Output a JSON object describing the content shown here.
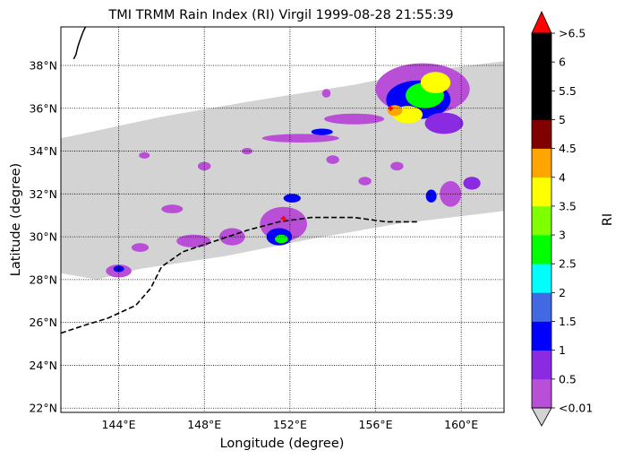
{
  "chart_data": {
    "type": "heatmap",
    "title": "TMI TRMM Rain Index (RI) Virgil 1999-08-28 21:55:39",
    "xlabel": "Longitude (degree)",
    "ylabel": "Latitude (degree)",
    "xlim": [
      141.3,
      162.0
    ],
    "ylim": [
      21.8,
      39.8
    ],
    "x_ticks": [
      {
        "value": 144,
        "label": "144°E"
      },
      {
        "value": 148,
        "label": "148°E"
      },
      {
        "value": 152,
        "label": "152°E"
      },
      {
        "value": 156,
        "label": "156°E"
      },
      {
        "value": 160,
        "label": "160°E"
      }
    ],
    "y_ticks": [
      {
        "value": 22,
        "label": "22°N"
      },
      {
        "value": 24,
        "label": "24°N"
      },
      {
        "value": 26,
        "label": "26°N"
      },
      {
        "value": 28,
        "label": "28°N"
      },
      {
        "value": 30,
        "label": "30°N"
      },
      {
        "value": 32,
        "label": "32°N"
      },
      {
        "value": 34,
        "label": "34°N"
      },
      {
        "value": 36,
        "label": "36°N"
      },
      {
        "value": 38,
        "label": "38°N"
      }
    ],
    "grid": true,
    "colorbar": {
      "label": "RI",
      "bounds": [
        0,
        0.5,
        1,
        1.5,
        2,
        2.5,
        3,
        3.5,
        4,
        4.5,
        5,
        5.5,
        6,
        6.5
      ],
      "tick_labels": [
        "<0.01",
        "0.5",
        "1",
        "1.5",
        "2",
        "2.5",
        "3",
        "3.5",
        "4",
        "4.5",
        "5",
        "5.5",
        "6",
        ">6.5"
      ],
      "colors": [
        "#b84fd6",
        "#8a2be2",
        "#0000ff",
        "#4169e1",
        "#00ffff",
        "#00ff00",
        "#7fff00",
        "#ffff00",
        "#ffa500",
        "#800000",
        "#000000",
        "#000000",
        "#000000"
      ],
      "under_color": "#d3d3d3",
      "over_color": "#ff0000"
    },
    "swath": {
      "color": "#d3d3d3",
      "polygon": [
        [
          141.3,
          34.6
        ],
        [
          146,
          35.6
        ],
        [
          150,
          36.3
        ],
        [
          155,
          37.1
        ],
        [
          158,
          37.7
        ],
        [
          162,
          38.2
        ],
        [
          162,
          31.2
        ],
        [
          157,
          30.6
        ],
        [
          153,
          29.9
        ],
        [
          149,
          29.1
        ],
        [
          145,
          28.5
        ],
        [
          143,
          28.0
        ],
        [
          141.3,
          28.3
        ]
      ]
    },
    "rain_cells": [
      {
        "lon": 158.2,
        "lat": 36.9,
        "rx": 2.2,
        "ry": 1.2,
        "ri": 0.3
      },
      {
        "lon": 158.0,
        "lat": 36.4,
        "rx": 1.5,
        "ry": 0.9,
        "ri": 1.2
      },
      {
        "lon": 158.3,
        "lat": 36.6,
        "rx": 0.9,
        "ry": 0.6,
        "ri": 2.7
      },
      {
        "lon": 158.8,
        "lat": 37.2,
        "rx": 0.7,
        "ry": 0.5,
        "ri": 3.7
      },
      {
        "lon": 157.5,
        "lat": 35.7,
        "rx": 0.7,
        "ry": 0.4,
        "ri": 3.7
      },
      {
        "lon": 156.9,
        "lat": 35.9,
        "rx": 0.35,
        "ry": 0.25,
        "ri": 4.2
      },
      {
        "lon": 159.2,
        "lat": 35.3,
        "rx": 0.9,
        "ry": 0.5,
        "ri": 0.8
      },
      {
        "lon": 155.0,
        "lat": 35.5,
        "rx": 1.4,
        "ry": 0.25,
        "ri": 0.3
      },
      {
        "lon": 152.5,
        "lat": 34.6,
        "rx": 1.8,
        "ry": 0.2,
        "ri": 0.3
      },
      {
        "lon": 153.5,
        "lat": 34.9,
        "rx": 0.5,
        "ry": 0.15,
        "ri": 1.2
      },
      {
        "lon": 151.7,
        "lat": 30.6,
        "rx": 1.1,
        "ry": 0.8,
        "ri": 0.3
      },
      {
        "lon": 151.5,
        "lat": 30.0,
        "rx": 0.6,
        "ry": 0.4,
        "ri": 1.2
      },
      {
        "lon": 151.6,
        "lat": 29.9,
        "rx": 0.3,
        "ry": 0.2,
        "ri": 2.7
      },
      {
        "lon": 152.1,
        "lat": 31.8,
        "rx": 0.4,
        "ry": 0.2,
        "ri": 1.2
      },
      {
        "lon": 149.3,
        "lat": 30.0,
        "rx": 0.6,
        "ry": 0.4,
        "ri": 0.3
      },
      {
        "lon": 147.5,
        "lat": 29.8,
        "rx": 0.8,
        "ry": 0.3,
        "ri": 0.3
      },
      {
        "lon": 144.0,
        "lat": 28.4,
        "rx": 0.6,
        "ry": 0.3,
        "ri": 0.3
      },
      {
        "lon": 144.0,
        "lat": 28.5,
        "rx": 0.25,
        "ry": 0.15,
        "ri": 1.2
      },
      {
        "lon": 145.0,
        "lat": 29.5,
        "rx": 0.4,
        "ry": 0.2,
        "ri": 0.3
      },
      {
        "lon": 160.5,
        "lat": 32.5,
        "rx": 0.4,
        "ry": 0.3,
        "ri": 0.8
      },
      {
        "lon": 159.5,
        "lat": 32.0,
        "rx": 0.5,
        "ry": 0.6,
        "ri": 0.3
      },
      {
        "lon": 158.6,
        "lat": 31.9,
        "rx": 0.25,
        "ry": 0.3,
        "ri": 1.2
      },
      {
        "lon": 157.0,
        "lat": 33.3,
        "rx": 0.3,
        "ry": 0.2,
        "ri": 0.3
      },
      {
        "lon": 155.5,
        "lat": 32.6,
        "rx": 0.3,
        "ry": 0.2,
        "ri": 0.3
      },
      {
        "lon": 154.0,
        "lat": 33.6,
        "rx": 0.3,
        "ry": 0.2,
        "ri": 0.3
      },
      {
        "lon": 148.0,
        "lat": 33.3,
        "rx": 0.3,
        "ry": 0.2,
        "ri": 0.3
      },
      {
        "lon": 145.2,
        "lat": 33.8,
        "rx": 0.25,
        "ry": 0.15,
        "ri": 0.3
      },
      {
        "lon": 150.0,
        "lat": 34.0,
        "rx": 0.25,
        "ry": 0.15,
        "ri": 0.3
      },
      {
        "lon": 146.5,
        "lat": 31.3,
        "rx": 0.5,
        "ry": 0.2,
        "ri": 0.3
      },
      {
        "lon": 153.7,
        "lat": 36.7,
        "rx": 0.2,
        "ry": 0.2,
        "ri": 0.3
      }
    ],
    "track": {
      "color": "#000000",
      "style": "dashed",
      "points": [
        [
          141.3,
          25.5
        ],
        [
          142.5,
          25.9
        ],
        [
          143.5,
          26.2
        ],
        [
          144.8,
          26.8
        ],
        [
          145.5,
          27.6
        ],
        [
          146.0,
          28.6
        ],
        [
          147.0,
          29.3
        ],
        [
          148.5,
          29.8
        ],
        [
          150.0,
          30.3
        ],
        [
          151.5,
          30.7
        ],
        [
          153.0,
          30.9
        ],
        [
          155.0,
          30.9
        ],
        [
          156.5,
          30.7
        ],
        [
          158.0,
          30.7
        ]
      ]
    },
    "storm_center_markers": [
      [
        151.7,
        30.85
      ],
      [
        156.7,
        36.0
      ]
    ],
    "coastline": [
      [
        141.9,
        38.3
      ],
      [
        142.0,
        38.5
      ],
      [
        142.1,
        38.9
      ],
      [
        142.2,
        39.2
      ],
      [
        142.35,
        39.6
      ],
      [
        142.45,
        39.8
      ]
    ]
  }
}
